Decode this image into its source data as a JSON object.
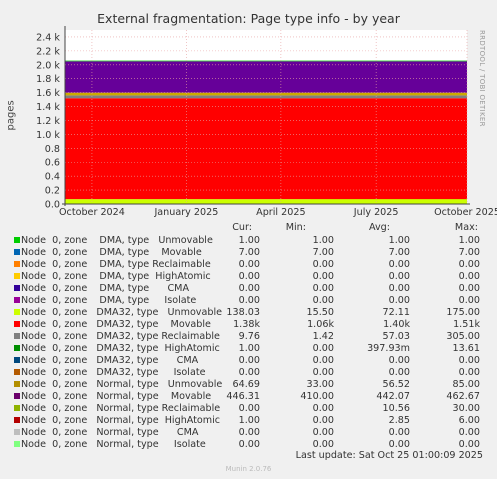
{
  "chart_data": {
    "type": "area",
    "title": "External fragmentation: Page type info - by year",
    "ylabel": "pages",
    "side_label": "RRDTOOL / TOBI OETIKER",
    "ylim": [
      0,
      2.5
    ],
    "y_ticks": [
      {
        "v": 0.0,
        "label": "0.0"
      },
      {
        "v": 0.2,
        "label": "0.2"
      },
      {
        "v": 0.4,
        "label": "0.4"
      },
      {
        "v": 0.6,
        "label": "0.6"
      },
      {
        "v": 0.8,
        "label": "0.8"
      },
      {
        "v": 1.0,
        "label": "1.0 k"
      },
      {
        "v": 1.2,
        "label": "1.2 k"
      },
      {
        "v": 1.4,
        "label": "1.4 k"
      },
      {
        "v": 1.6,
        "label": "1.6 k"
      },
      {
        "v": 1.8,
        "label": "1.8 k"
      },
      {
        "v": 2.0,
        "label": "2.0 k"
      },
      {
        "v": 2.2,
        "label": "2.2 k"
      },
      {
        "v": 2.4,
        "label": "2.4 k"
      }
    ],
    "x_ticks": [
      {
        "pos": 0.067,
        "label": "October 2024"
      },
      {
        "pos": 0.302,
        "label": "January 2025"
      },
      {
        "pos": 0.537,
        "label": "April 2025"
      },
      {
        "pos": 0.774,
        "label": "July 2025"
      },
      {
        "pos": 1.0,
        "label": "October 2025"
      }
    ],
    "stack": [
      {
        "name": "DMA32 Unmovable",
        "color": "#ccff00",
        "bottom": 0.0,
        "top": 0.07,
        "late_top": 0.13,
        "late_start": 0.61
      },
      {
        "name": "DMA32 Movable",
        "color": "#ff0000",
        "bottom": 0.07,
        "top": 1.52
      },
      {
        "name": "DMA32 Reclaimable",
        "color": "#808080",
        "bottom": 1.52,
        "top": 1.56
      },
      {
        "name": "Normal Unmovable",
        "color": "#ccaa00",
        "bottom": 1.56,
        "top": 1.6
      },
      {
        "name": "Normal Movable",
        "color": "#660099",
        "bottom": 1.6,
        "top": 2.05
      },
      {
        "name": "DMA Unmovable",
        "color": "#00cc00",
        "bottom": 2.05,
        "top": 2.06
      }
    ],
    "columns": [
      "Cur:",
      "Min:",
      "Avg:",
      "Max:"
    ],
    "legend": [
      {
        "label": "Node  0, zone    DMA, type   Unmovable",
        "color": "#00cc00",
        "cur": "1.00",
        "min": "1.00",
        "avg": "1.00",
        "max": "1.00"
      },
      {
        "label": "Node  0, zone    DMA, type    Movable",
        "color": "#0066b3",
        "cur": "7.00",
        "min": "7.00",
        "avg": "7.00",
        "max": "7.00"
      },
      {
        "label": "Node  0, zone    DMA, type Reclaimable",
        "color": "#ff8000",
        "cur": "0.00",
        "min": "0.00",
        "avg": "0.00",
        "max": "0.00"
      },
      {
        "label": "Node  0, zone    DMA, type  HighAtomic",
        "color": "#ffcc00",
        "cur": "0.00",
        "min": "0.00",
        "avg": "0.00",
        "max": "0.00"
      },
      {
        "label": "Node  0, zone    DMA, type      CMA",
        "color": "#330099",
        "cur": "0.00",
        "min": "0.00",
        "avg": "0.00",
        "max": "0.00"
      },
      {
        "label": "Node  0, zone    DMA, type     Isolate",
        "color": "#990099",
        "cur": "0.00",
        "min": "0.00",
        "avg": "0.00",
        "max": "0.00"
      },
      {
        "label": "Node  0, zone   DMA32, type   Unmovable",
        "color": "#ccff00",
        "cur": "138.03",
        "min": "15.50",
        "avg": "72.11",
        "max": "175.00"
      },
      {
        "label": "Node  0, zone   DMA32, type    Movable",
        "color": "#ff0000",
        "cur": "1.38k",
        "min": "1.06k",
        "avg": "1.40k",
        "max": "1.51k"
      },
      {
        "label": "Node  0, zone   DMA32, type Reclaimable",
        "color": "#808080",
        "cur": "9.76",
        "min": "1.42",
        "avg": "57.03",
        "max": "305.00"
      },
      {
        "label": "Node  0, zone   DMA32, type  HighAtomic",
        "color": "#008f00",
        "cur": "1.00",
        "min": "0.00",
        "avg": "397.93m",
        "max": "13.61"
      },
      {
        "label": "Node  0, zone   DMA32, type      CMA",
        "color": "#00487d",
        "cur": "0.00",
        "min": "0.00",
        "avg": "0.00",
        "max": "0.00"
      },
      {
        "label": "Node  0, zone   DMA32, type     Isolate",
        "color": "#b35a00",
        "cur": "0.00",
        "min": "0.00",
        "avg": "0.00",
        "max": "0.00"
      },
      {
        "label": "Node  0, zone   Normal, type   Unmovable",
        "color": "#b38f00",
        "cur": "64.69",
        "min": "33.00",
        "avg": "56.52",
        "max": "85.00"
      },
      {
        "label": "Node  0, zone   Normal, type    Movable",
        "color": "#6b006b",
        "cur": "446.31",
        "min": "410.00",
        "avg": "442.07",
        "max": "462.67"
      },
      {
        "label": "Node  0, zone   Normal, type Reclaimable",
        "color": "#8fb300",
        "cur": "0.00",
        "min": "0.00",
        "avg": "10.56",
        "max": "30.00"
      },
      {
        "label": "Node  0, zone   Normal, type  HighAtomic",
        "color": "#b30000",
        "cur": "1.00",
        "min": "0.00",
        "avg": "2.85",
        "max": "6.00"
      },
      {
        "label": "Node  0, zone   Normal, type      CMA",
        "color": "#bebebe",
        "cur": "0.00",
        "min": "0.00",
        "avg": "0.00",
        "max": "0.00"
      },
      {
        "label": "Node  0, zone   Normal, type     Isolate",
        "color": "#80ff80",
        "cur": "0.00",
        "min": "0.00",
        "avg": "0.00",
        "max": "0.00"
      }
    ],
    "last_update": "Last update: Sat Oct 25 01:00:09 2025",
    "footer": "Munin 2.0.76"
  }
}
